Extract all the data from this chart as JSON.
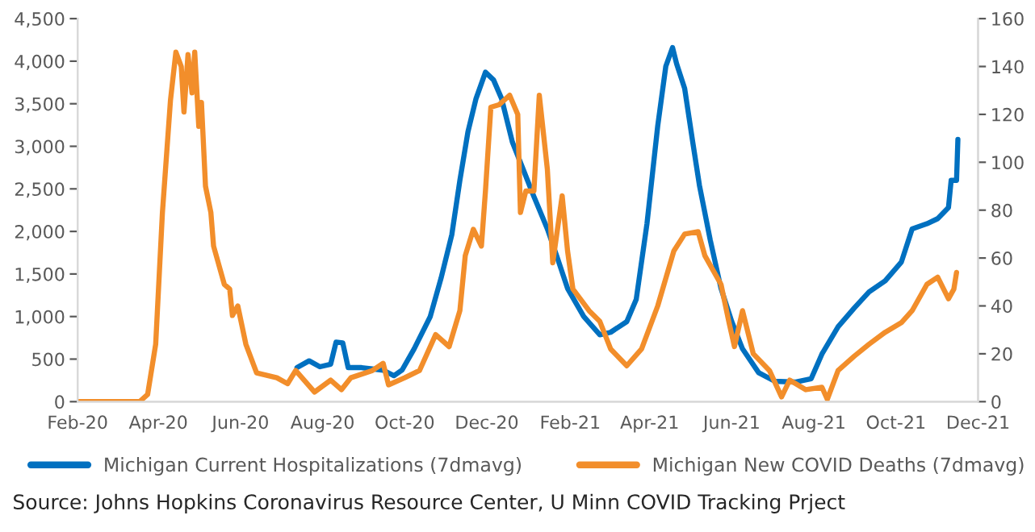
{
  "chart_data": {
    "type": "line",
    "annotations": [
      "Source: Johns Hopkins Coronavirus Resource Center, U Minn COVID Tracking Prject"
    ],
    "xlim": [
      "2020-02-01",
      "2021-12-01"
    ],
    "xticks": [
      {
        "value": "2020-02-01",
        "label": "Feb-20"
      },
      {
        "value": "2020-04-01",
        "label": "Apr-20"
      },
      {
        "value": "2020-06-01",
        "label": "Jun-20"
      },
      {
        "value": "2020-08-01",
        "label": "Aug-20"
      },
      {
        "value": "2020-10-01",
        "label": "Oct-20"
      },
      {
        "value": "2020-12-01",
        "label": "Dec-20"
      },
      {
        "value": "2021-02-01",
        "label": "Feb-21"
      },
      {
        "value": "2021-04-01",
        "label": "Apr-21"
      },
      {
        "value": "2021-06-01",
        "label": "Jun-21"
      },
      {
        "value": "2021-08-01",
        "label": "Aug-21"
      },
      {
        "value": "2021-10-01",
        "label": "Oct-21"
      },
      {
        "value": "2021-12-01",
        "label": "Dec-21"
      }
    ],
    "ylim": [
      0,
      4500
    ],
    "yticks": [
      0,
      {
        "value": 500,
        "label": "500"
      },
      {
        "value": 1000,
        "label": "1,000"
      },
      {
        "value": 1500,
        "label": "1,500"
      },
      {
        "value": 2000,
        "label": "2,000"
      },
      {
        "value": 2500,
        "label": "2,500"
      },
      {
        "value": 3000,
        "label": "3,000"
      },
      {
        "value": 3500,
        "label": "3,500"
      },
      {
        "value": 4000,
        "label": "4,000"
      },
      {
        "value": 4500,
        "label": "4,500"
      }
    ],
    "y2lim": [
      0,
      160
    ],
    "y2ticks": [
      0,
      20,
      40,
      60,
      80,
      100,
      120,
      140,
      160
    ],
    "grid": false,
    "legend": "bottom",
    "series": [
      {
        "name": "Michigan Current Hospitalizations (7dmavg)",
        "color": "#0070c0",
        "axis": "y",
        "x": [
          "2020-07-13",
          "2020-07-22",
          "2020-07-30",
          "2020-08-07",
          "2020-08-11",
          "2020-08-16",
          "2020-08-20",
          "2020-08-30",
          "2020-09-15",
          "2020-09-23",
          "2020-09-29",
          "2020-10-08",
          "2020-10-20",
          "2020-10-28",
          "2020-11-05",
          "2020-11-11",
          "2020-11-17",
          "2020-11-23",
          "2020-11-30",
          "2020-12-06",
          "2020-12-12",
          "2020-12-20",
          "2020-12-28",
          "2021-01-05",
          "2021-01-15",
          "2021-01-22",
          "2021-01-30",
          "2021-02-11",
          "2021-02-23",
          "2021-03-03",
          "2021-03-15",
          "2021-03-22",
          "2021-03-30",
          "2021-04-07",
          "2021-04-13",
          "2021-04-18",
          "2021-04-21",
          "2021-04-27",
          "2021-05-03",
          "2021-05-08",
          "2021-05-16",
          "2021-05-24",
          "2021-06-01",
          "2021-06-09",
          "2021-06-21",
          "2021-07-03",
          "2021-07-18",
          "2021-07-30",
          "2021-08-07",
          "2021-08-19",
          "2021-08-31",
          "2021-09-11",
          "2021-09-23",
          "2021-10-05",
          "2021-10-13",
          "2021-10-24",
          "2021-11-01",
          "2021-11-09",
          "2021-11-11",
          "2021-11-15",
          "2021-11-16"
        ],
        "values": [
          400,
          480,
          410,
          440,
          700,
          690,
          400,
          400,
          370,
          305,
          370,
          620,
          1000,
          1450,
          1960,
          2600,
          3170,
          3560,
          3870,
          3780,
          3560,
          3050,
          2730,
          2410,
          2030,
          1710,
          1330,
          1000,
          785,
          815,
          940,
          1200,
          2090,
          3240,
          3940,
          4160,
          3970,
          3680,
          3050,
          2540,
          1900,
          1330,
          940,
          620,
          340,
          240,
          230,
          270,
          560,
          880,
          1100,
          1290,
          1420,
          1640,
          2030,
          2090,
          2150,
          2280,
          2600,
          2600,
          3080
        ]
      },
      {
        "name": "Michigan New COVID Deaths (7dmavg)",
        "color": "#f28e2b",
        "axis": "y2",
        "x": [
          "2020-02-01",
          "2020-03-18",
          "2020-03-24",
          "2020-03-30",
          "2020-04-04",
          "2020-04-10",
          "2020-04-14",
          "2020-04-18",
          "2020-04-20",
          "2020-04-23",
          "2020-04-26",
          "2020-04-28",
          "2020-05-01",
          "2020-05-03",
          "2020-05-06",
          "2020-05-10",
          "2020-05-12",
          "2020-05-20",
          "2020-05-24",
          "2020-05-26",
          "2020-05-30",
          "2020-06-05",
          "2020-06-13",
          "2020-06-28",
          "2020-07-06",
          "2020-07-12",
          "2020-07-26",
          "2020-08-07",
          "2020-08-15",
          "2020-08-22",
          "2020-09-07",
          "2020-09-15",
          "2020-09-19",
          "2020-10-01",
          "2020-10-12",
          "2020-10-24",
          "2020-11-03",
          "2020-11-11",
          "2020-11-15",
          "2020-11-21",
          "2020-11-27",
          "2020-11-30",
          "2020-12-04",
          "2020-12-10",
          "2020-12-18",
          "2020-12-24",
          "2020-12-26",
          "2020-12-30",
          "2021-01-05",
          "2021-01-09",
          "2021-01-15",
          "2021-01-19",
          "2021-01-26",
          "2021-01-30",
          "2021-02-03",
          "2021-02-15",
          "2021-02-23",
          "2021-03-03",
          "2021-03-15",
          "2021-03-26",
          "2021-04-07",
          "2021-04-19",
          "2021-04-27",
          "2021-05-07",
          "2021-05-12",
          "2021-05-24",
          "2021-05-30",
          "2021-06-03",
          "2021-06-09",
          "2021-06-17",
          "2021-06-29",
          "2021-07-08",
          "2021-07-14",
          "2021-07-26",
          "2021-08-07",
          "2021-08-11",
          "2021-08-19",
          "2021-08-31",
          "2021-09-11",
          "2021-09-23",
          "2021-10-05",
          "2021-10-13",
          "2021-10-24",
          "2021-11-01",
          "2021-11-09",
          "2021-11-13",
          "2021-11-15"
        ],
        "values": [
          0,
          0,
          3,
          24,
          79,
          126,
          146,
          140,
          121,
          145,
          129,
          146,
          115,
          125,
          90,
          79,
          65,
          49,
          47,
          36,
          40,
          24,
          12,
          10,
          7.5,
          13,
          4,
          9,
          5,
          10,
          13,
          16,
          7,
          10,
          13,
          28,
          23,
          38,
          61,
          72,
          65,
          88,
          123,
          124,
          128,
          120,
          79,
          88,
          88,
          128,
          97,
          58,
          86,
          63,
          47,
          38,
          33.5,
          22,
          15,
          22,
          40,
          63,
          70,
          71,
          61,
          49,
          33,
          23,
          38,
          20,
          13,
          2,
          9,
          5,
          6,
          1,
          13,
          19,
          24,
          29,
          33,
          38,
          49,
          52,
          43,
          47,
          54
        ]
      }
    ]
  }
}
